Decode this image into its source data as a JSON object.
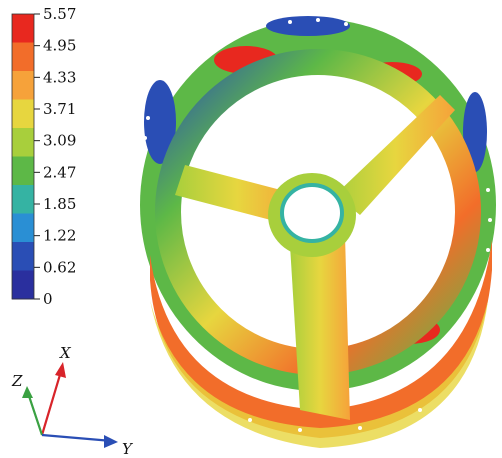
{
  "legend": {
    "labels": [
      "5.57",
      "4.95",
      "4.33",
      "3.71",
      "3.09",
      "2.47",
      "1.85",
      "1.22",
      "0.62",
      "0"
    ],
    "colors": [
      "#e8281f",
      "#f26d2a",
      "#f6a23a",
      "#e7d63f",
      "#a8cf3c",
      "#5db847",
      "#35b3a3",
      "#2a8fd4",
      "#2a4eb5",
      "#2a2f9e"
    ]
  },
  "triad": {
    "x": "X",
    "y": "Y",
    "z": "Z"
  }
}
